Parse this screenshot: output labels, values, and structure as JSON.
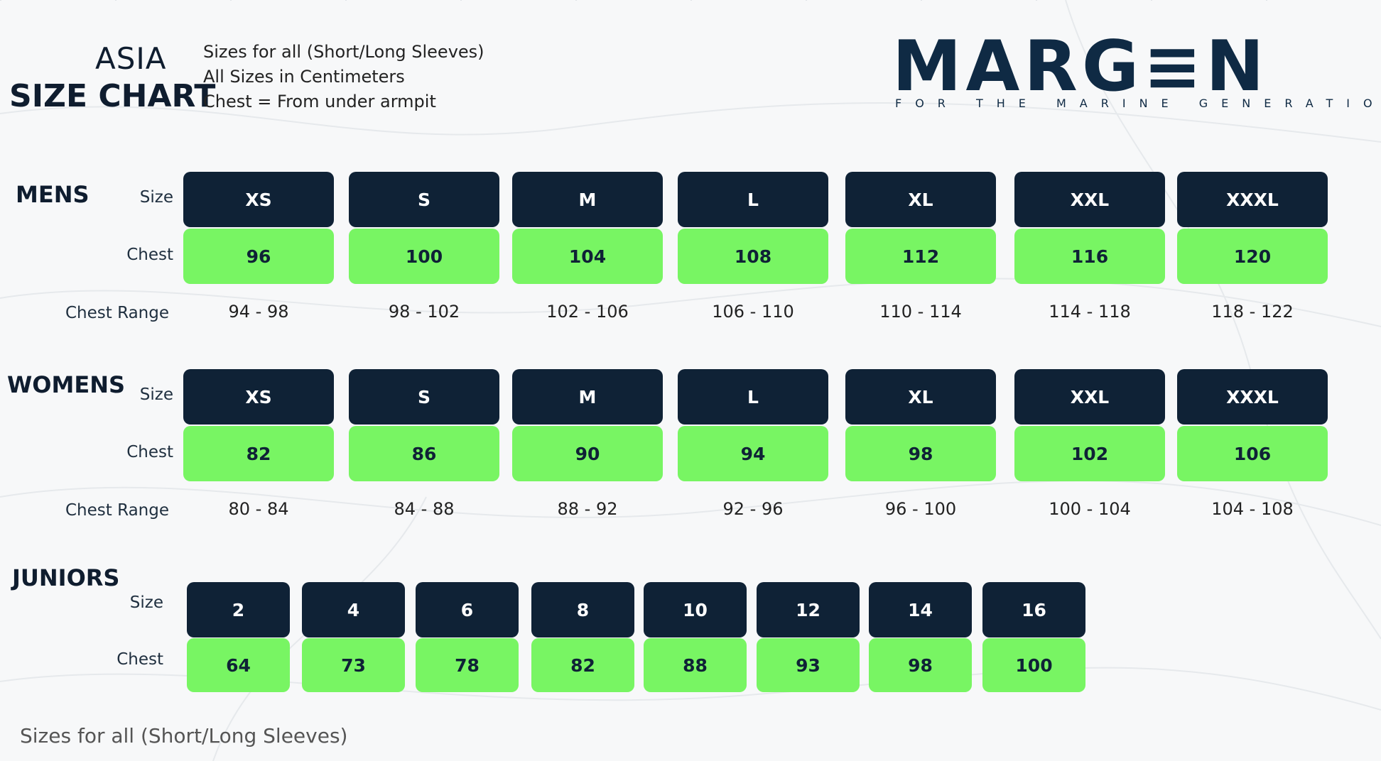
{
  "header": {
    "title_line1": "ASIA",
    "title_line2": "SIZE CHART",
    "notes": [
      "Sizes for all (Short/Long Sleeves)",
      "All Sizes in Centimeters",
      "Chest = From under armpit"
    ]
  },
  "logo": {
    "wordmark": "MARG≡N",
    "tagline": "FOR THE MARINE GENERATION",
    "color": "#0f2a44",
    "accent": "#78f563"
  },
  "labels": {
    "size": "Size",
    "chest": "Chest",
    "chest_range": "Chest Range"
  },
  "colors": {
    "size_cell": "#0f2236",
    "chest_cell": "#78f563"
  },
  "sections": {
    "mens": {
      "title": "MENS",
      "sizes": [
        "XS",
        "S",
        "M",
        "L",
        "XL",
        "XXL",
        "XXXL"
      ],
      "chest": [
        "96",
        "100",
        "104",
        "108",
        "112",
        "116",
        "120"
      ],
      "ranges": [
        "94 - 98",
        "98 - 102",
        "102  - 106",
        "106  - 110",
        "110  - 114",
        "114  - 118",
        "118  - 122"
      ]
    },
    "womens": {
      "title": "WOMENS",
      "sizes": [
        "XS",
        "S",
        "M",
        "L",
        "XL",
        "XXL",
        "XXXL"
      ],
      "chest": [
        "82",
        "86",
        "90",
        "94",
        "98",
        "102",
        "106"
      ],
      "ranges": [
        "80 - 84",
        "84 - 88",
        "88 - 92",
        "92 - 96",
        "96 - 100",
        "100 - 104",
        "104 - 108"
      ]
    },
    "juniors": {
      "title": "JUNIORS",
      "sizes": [
        "2",
        "4",
        "6",
        "8",
        "10",
        "12",
        "14",
        "16"
      ],
      "chest": [
        "64",
        "73",
        "78",
        "82",
        "88",
        "93",
        "98",
        "100"
      ]
    }
  },
  "footer": "Sizes for all (Short/Long Sleeves)"
}
